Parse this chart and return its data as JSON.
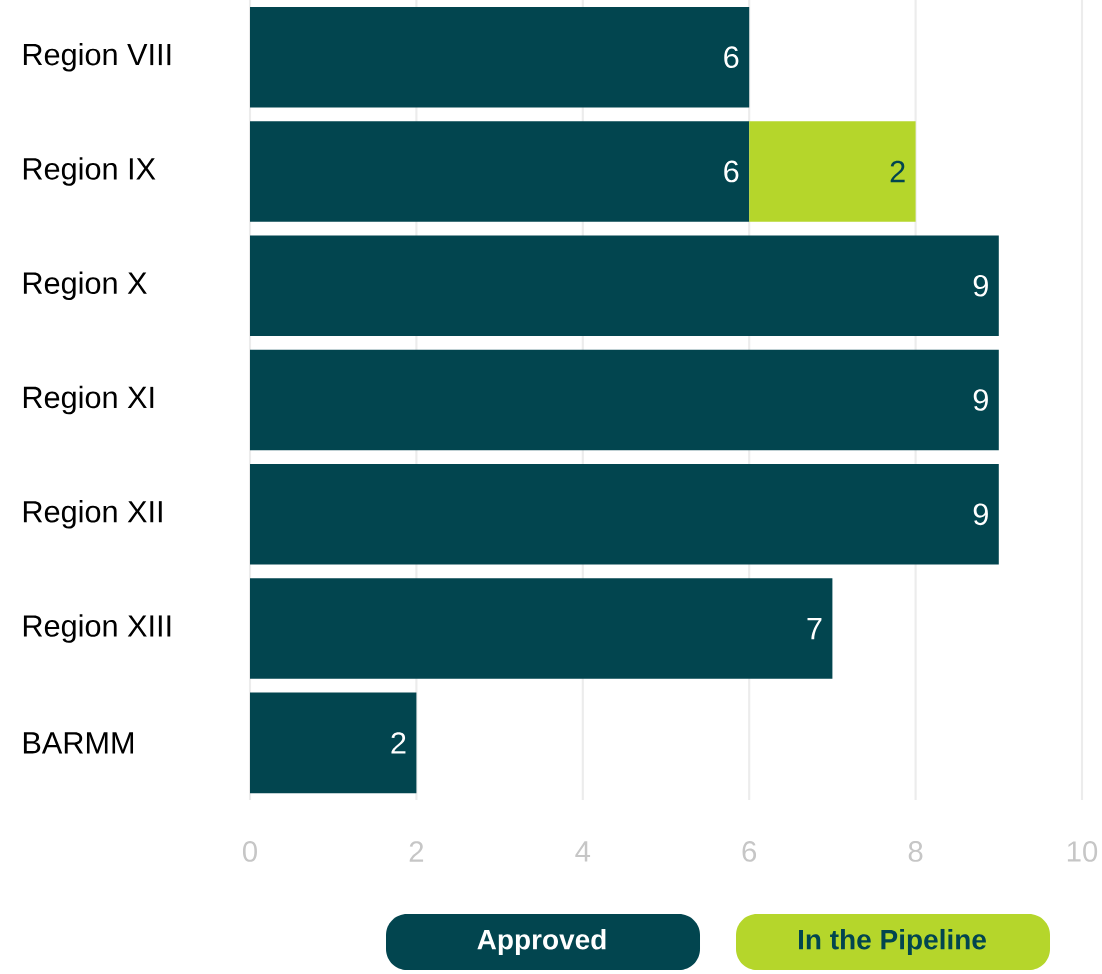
{
  "chart_data": {
    "type": "bar",
    "orientation": "horizontal",
    "stacked": true,
    "categories": [
      "Region VIII",
      "Region IX",
      "Region X",
      "Region XI",
      "Region XII",
      "Region XIII",
      "BARMM"
    ],
    "series": [
      {
        "name": "Approved",
        "color": "#02454f",
        "values": [
          6,
          6,
          9,
          9,
          9,
          7,
          2
        ]
      },
      {
        "name": "In the Pipeline",
        "color": "#b5d62b",
        "values": [
          null,
          2,
          null,
          null,
          null,
          null,
          null
        ]
      }
    ],
    "xlim": [
      0,
      10
    ],
    "xticks": [
      0,
      2,
      4,
      6,
      8,
      10
    ],
    "grid": "x",
    "data_labels": true,
    "legend": "bottom"
  }
}
